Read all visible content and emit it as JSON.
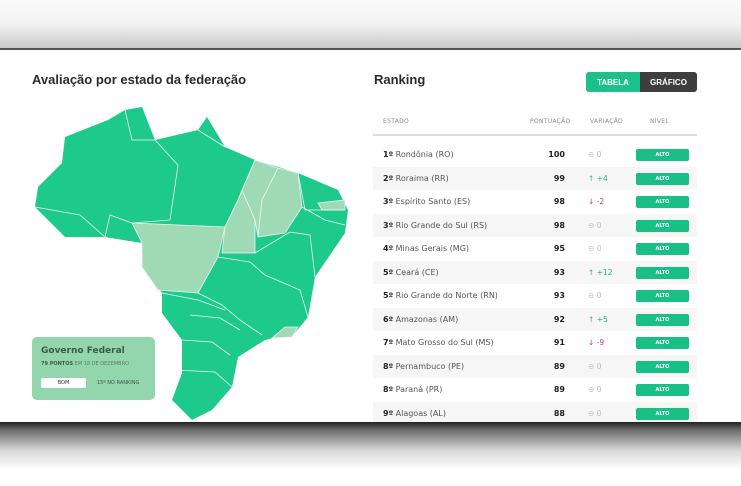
{
  "left": {
    "title": "Avaliação por estado da federação",
    "legend": {
      "title": "Governo Federal",
      "points": "79 PONTOS",
      "date": "EM 18 DE DEZEMBRO",
      "level": "BOM",
      "ranking": "15º NO RANKING"
    }
  },
  "right": {
    "title": "Ranking",
    "toggle": {
      "table": "TABELA",
      "chart": "GRÁFICO"
    },
    "columns": {
      "state": "ESTADO",
      "score": "PONTUAÇÃO",
      "variation": "VARIAÇÃO",
      "level": "NÍVEL"
    },
    "rows": [
      {
        "rank": "1º",
        "state": "Rondônia (RO)",
        "score": "100",
        "var": "0",
        "dir": "eq",
        "level": "ALTO"
      },
      {
        "rank": "2º",
        "state": "Roraima (RR)",
        "score": "99",
        "var": "+4",
        "dir": "up",
        "level": "ALTO"
      },
      {
        "rank": "3º",
        "state": "Espírito Santo (ES)",
        "score": "98",
        "var": "-2",
        "dir": "down",
        "level": "ALTO"
      },
      {
        "rank": "3º",
        "state": "Rio Grande do Sul (RS)",
        "score": "98",
        "var": "0",
        "dir": "eq",
        "level": "ALTO"
      },
      {
        "rank": "4º",
        "state": "Minas Gerais (MG)",
        "score": "95",
        "var": "0",
        "dir": "eq",
        "level": "ALTO"
      },
      {
        "rank": "5º",
        "state": "Ceará (CE)",
        "score": "93",
        "var": "+12",
        "dir": "up",
        "level": "ALTO"
      },
      {
        "rank": "5º",
        "state": "Rio Grande do Norte (RN)",
        "score": "93",
        "var": "0",
        "dir": "eq",
        "level": "ALTO"
      },
      {
        "rank": "6º",
        "state": "Amazonas (AM)",
        "score": "92",
        "var": "+5",
        "dir": "up",
        "level": "ALTO"
      },
      {
        "rank": "7º",
        "state": "Mato Grosso do Sul (MS)",
        "score": "91",
        "var": "-9",
        "dir": "down",
        "level": "ALTO"
      },
      {
        "rank": "8º",
        "state": "Pernambuco (PE)",
        "score": "89",
        "var": "0",
        "dir": "eq",
        "level": "ALTO"
      },
      {
        "rank": "8º",
        "state": "Paraná (PR)",
        "score": "89",
        "var": "0",
        "dir": "eq",
        "level": "ALTO"
      },
      {
        "rank": "9º",
        "state": "Alagoas (AL)",
        "score": "88",
        "var": "0",
        "dir": "eq",
        "level": "ALTO"
      }
    ]
  },
  "colors": {
    "high": "#1ec98c",
    "medium": "#9fd9b6",
    "accent": "#1cc08a"
  }
}
